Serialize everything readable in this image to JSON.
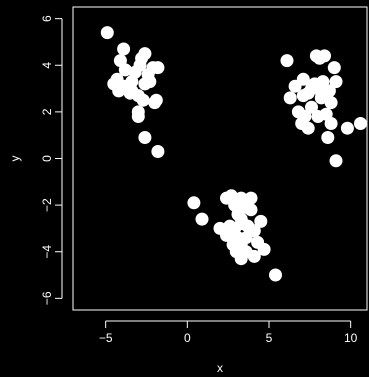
{
  "chart_data": {
    "type": "scatter",
    "title": "",
    "xlabel": "x",
    "ylabel": "y",
    "xlim": [
      -7.0,
      11.0
    ],
    "ylim": [
      -6.5,
      6.5
    ],
    "x_ticks": [
      -5,
      0,
      5,
      10
    ],
    "y_ticks": [
      -6,
      -4,
      -2,
      0,
      2,
      4,
      6
    ],
    "x_tick_labels": [
      "−5",
      "0",
      "5",
      "10"
    ],
    "y_tick_labels": [
      "−6",
      "−4",
      "−2",
      "0",
      "2",
      "4",
      "6"
    ],
    "grid": false,
    "legend": "none",
    "colors": {
      "background": "#000000",
      "axes": "#ffffff",
      "points": "#ffffff"
    },
    "series": [
      {
        "points": [
          [
            -4.9,
            5.4
          ],
          [
            -3.9,
            4.7
          ],
          [
            -2.8,
            4.3
          ],
          [
            -2.6,
            4.5
          ],
          [
            -2.1,
            3.9
          ],
          [
            -1.8,
            3.9
          ],
          [
            -3.8,
            3.8
          ],
          [
            -3.2,
            3.7
          ],
          [
            -2.4,
            3.6
          ],
          [
            -4.3,
            3.4
          ],
          [
            -3.4,
            3.3
          ],
          [
            -4.5,
            3.2
          ],
          [
            -3.9,
            3.1
          ],
          [
            -2.6,
            3.2
          ],
          [
            -2.3,
            3.3
          ],
          [
            -4.2,
            2.9
          ],
          [
            -3.5,
            2.8
          ],
          [
            -3.0,
            2.7
          ],
          [
            -2.7,
            2.5
          ],
          [
            -1.9,
            2.5
          ],
          [
            -2.0,
            2.4
          ],
          [
            -3.4,
            2.9
          ],
          [
            -3.0,
            2.0
          ],
          [
            -3.0,
            1.8
          ],
          [
            -2.6,
            0.9
          ],
          [
            -1.8,
            0.3
          ],
          [
            -2.9,
            4.0
          ],
          [
            -4.1,
            4.2
          ],
          [
            6.1,
            4.2
          ],
          [
            7.9,
            4.4
          ],
          [
            8.4,
            4.4
          ],
          [
            8.1,
            4.3
          ],
          [
            9.0,
            3.9
          ],
          [
            7.1,
            3.4
          ],
          [
            7.8,
            3.2
          ],
          [
            8.3,
            3.3
          ],
          [
            9.1,
            3.3
          ],
          [
            6.6,
            3.1
          ],
          [
            7.4,
            2.8
          ],
          [
            8.7,
            2.9
          ],
          [
            6.3,
            2.6
          ],
          [
            7.1,
            2.7
          ],
          [
            8.2,
            2.6
          ],
          [
            8.8,
            2.4
          ],
          [
            7.6,
            2.2
          ],
          [
            6.8,
            2.0
          ],
          [
            7.2,
            1.8
          ],
          [
            8.0,
            1.8
          ],
          [
            8.5,
            1.9
          ],
          [
            7.0,
            1.5
          ],
          [
            7.4,
            1.3
          ],
          [
            8.8,
            1.5
          ],
          [
            9.8,
            1.3
          ],
          [
            10.6,
            1.5
          ],
          [
            8.6,
            0.9
          ],
          [
            9.1,
            -0.1
          ],
          [
            8.0,
            3.0
          ],
          [
            7.6,
            3.0
          ],
          [
            0.4,
            -1.9
          ],
          [
            0.9,
            -2.6
          ],
          [
            2.4,
            -1.7
          ],
          [
            2.7,
            -1.6
          ],
          [
            3.3,
            -1.7
          ],
          [
            3.9,
            -1.7
          ],
          [
            2.9,
            -2.0
          ],
          [
            3.5,
            -2.1
          ],
          [
            3.9,
            -2.2
          ],
          [
            3.1,
            -2.4
          ],
          [
            3.3,
            -2.6
          ],
          [
            4.5,
            -2.7
          ],
          [
            2.0,
            -3.0
          ],
          [
            2.6,
            -2.9
          ],
          [
            3.7,
            -2.9
          ],
          [
            4.1,
            -3.1
          ],
          [
            2.4,
            -3.3
          ],
          [
            3.1,
            -3.4
          ],
          [
            3.6,
            -3.4
          ],
          [
            4.3,
            -3.6
          ],
          [
            2.8,
            -3.7
          ],
          [
            3.3,
            -3.7
          ],
          [
            4.7,
            -3.9
          ],
          [
            3.0,
            -4.0
          ],
          [
            3.6,
            -4.0
          ],
          [
            4.1,
            -4.2
          ],
          [
            3.3,
            -4.3
          ],
          [
            5.4,
            -5.0
          ],
          [
            2.9,
            -3.0
          ],
          [
            3.4,
            -2.8
          ]
        ]
      }
    ]
  }
}
